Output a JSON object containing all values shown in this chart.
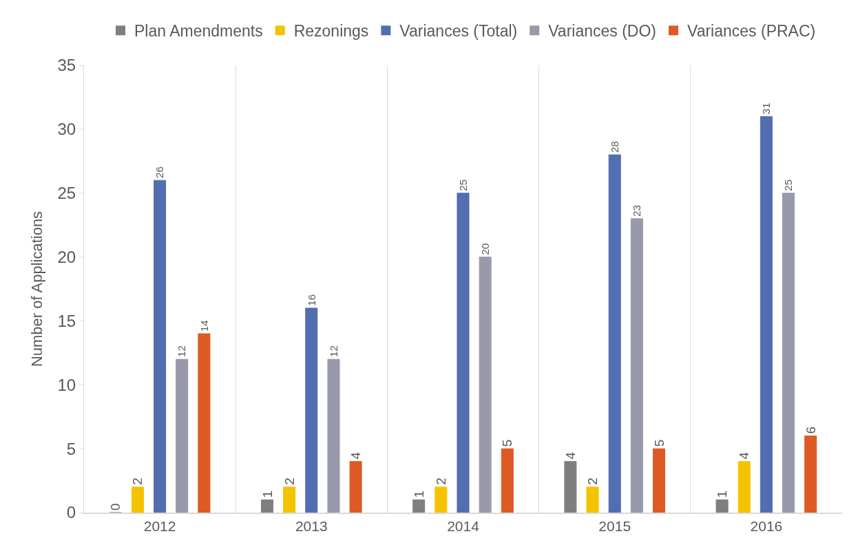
{
  "chart_data": {
    "type": "bar",
    "ylabel": "Number of Applications",
    "categories": [
      "2012",
      "2013",
      "2014",
      "2015",
      "2016"
    ],
    "series": [
      {
        "name": "Plan Amendments",
        "color": "#7f7f7f",
        "values": [
          0,
          1,
          1,
          4,
          1
        ]
      },
      {
        "name": "Rezonings",
        "color": "#f4c300",
        "values": [
          2,
          2,
          2,
          2,
          4
        ]
      },
      {
        "name": "Variances (Total)",
        "color": "#526db0",
        "values": [
          26,
          16,
          25,
          28,
          31
        ]
      },
      {
        "name": "Variances (DO)",
        "color": "#9899aa",
        "values": [
          12,
          12,
          20,
          23,
          25
        ]
      },
      {
        "name": "Variances (PRAC)",
        "color": "#dd5a24",
        "values": [
          14,
          4,
          5,
          5,
          6
        ]
      }
    ],
    "ylim": [
      0,
      35
    ],
    "yticks": [
      0,
      5,
      10,
      15,
      20,
      25,
      30,
      35
    ],
    "grid": "x",
    "legend": "top",
    "data_labels": true
  }
}
